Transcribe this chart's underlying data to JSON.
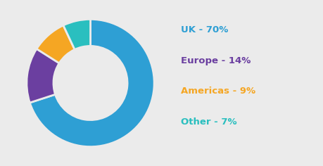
{
  "labels": [
    "UK",
    "Europe",
    "Americas",
    "Other"
  ],
  "values": [
    70,
    14,
    9,
    7
  ],
  "colors": [
    "#2e9fd4",
    "#6b3fa0",
    "#f5a623",
    "#2abfbf"
  ],
  "legend_labels": [
    "UK - 70%",
    "Europe - 14%",
    "Americas - 9%",
    "Other - 7%"
  ],
  "legend_text_colors": [
    "#2e9fd4",
    "#6b3fa0",
    "#f5a623",
    "#2abfbf"
  ],
  "background_color": "#ebebeb",
  "startangle": 90,
  "donut_width": 0.42
}
